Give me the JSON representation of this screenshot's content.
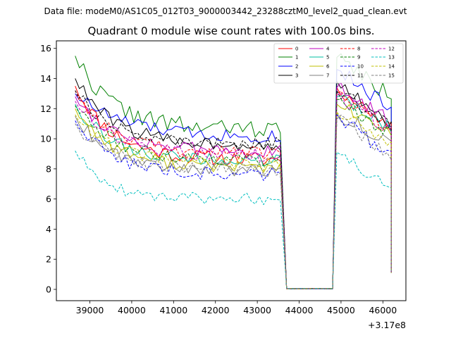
{
  "chart_data": {
    "type": "line",
    "suptitle": "Data file: modeM0/AS1C05_012T03_9000003442_23288cztM0_level2_quad_clean.evt",
    "title": "Quadrant 0 module wise count rates with 100.0s bins.",
    "xlabel": "",
    "ylabel": "",
    "x_offset_label": "+3.17e8",
    "xlim": [
      38200,
      46550
    ],
    "ylim": [
      -0.75,
      16.5
    ],
    "xticks": [
      {
        "value": 39000,
        "label": "39000"
      },
      {
        "value": 40000,
        "label": "40000"
      },
      {
        "value": 41000,
        "label": "41000"
      },
      {
        "value": 42000,
        "label": "42000"
      },
      {
        "value": 43000,
        "label": "43000"
      },
      {
        "value": 44000,
        "label": "44000"
      },
      {
        "value": 45000,
        "label": "45000"
      },
      {
        "value": 46000,
        "label": "46000"
      }
    ],
    "yticks": [
      {
        "value": 0,
        "label": "0"
      },
      {
        "value": 2,
        "label": "2"
      },
      {
        "value": 4,
        "label": "4"
      },
      {
        "value": 6,
        "label": "6"
      },
      {
        "value": 8,
        "label": "8"
      },
      {
        "value": 10,
        "label": "10"
      },
      {
        "value": 12,
        "label": "12"
      },
      {
        "value": 14,
        "label": "14"
      },
      {
        "value": 16,
        "label": "16"
      }
    ],
    "legend_position": "top-right",
    "legend_columns": 4,
    "segments": {
      "seg1": {
        "start": 38650,
        "end": 43600,
        "step": 100
      },
      "gap": {
        "start": 43700,
        "end": 44800,
        "step": 100,
        "value": 0.05
      },
      "seg2": {
        "start": 44900,
        "end": 46150,
        "step": 100
      }
    },
    "series": [
      {
        "name": "0",
        "color": "#ff0000",
        "dash": "solid",
        "start": 13.5,
        "plateau": 8.6,
        "decay": 900,
        "noise": 0.5,
        "drop": 9.0,
        "peak2": 13.4,
        "end2": 10.8,
        "noise2": 0.5,
        "seed": 11
      },
      {
        "name": "1",
        "color": "#008000",
        "dash": "solid",
        "start": 15.5,
        "plateau": 10.6,
        "decay": 900,
        "noise": 0.6,
        "drop": 11.9,
        "peak2": 15.4,
        "end2": 12.8,
        "noise2": 0.6,
        "seed": 22
      },
      {
        "name": "2",
        "color": "#0000ff",
        "dash": "solid",
        "start": 13.0,
        "plateau": 10.1,
        "decay": 1200,
        "noise": 0.45,
        "drop": 10.5,
        "peak2": 14.6,
        "end2": 12.0,
        "noise2": 0.5,
        "seed": 33
      },
      {
        "name": "3",
        "color": "#000000",
        "dash": "solid",
        "start": 14.0,
        "plateau": 9.6,
        "decay": 900,
        "noise": 0.45,
        "drop": 10.3,
        "peak2": 13.8,
        "end2": 10.8,
        "noise2": 0.5,
        "seed": 44
      },
      {
        "name": "4",
        "color": "#bf00bf",
        "dash": "solid",
        "start": 12.8,
        "plateau": 9.1,
        "decay": 1000,
        "noise": 0.45,
        "drop": 9.7,
        "peak2": 13.4,
        "end2": 11.2,
        "noise2": 0.5,
        "seed": 55
      },
      {
        "name": "5",
        "color": "#00bfa0",
        "dash": "solid",
        "start": 12.3,
        "plateau": 8.5,
        "decay": 900,
        "noise": 0.45,
        "drop": 8.6,
        "peak2": 12.8,
        "end2": 10.6,
        "noise2": 0.5,
        "seed": 66
      },
      {
        "name": "6",
        "color": "#bfbf00",
        "dash": "solid",
        "start": 12.0,
        "plateau": 8.1,
        "decay": 900,
        "noise": 0.45,
        "drop": 8.5,
        "peak2": 12.3,
        "end2": 10.2,
        "noise2": 0.5,
        "seed": 77
      },
      {
        "name": "7",
        "color": "#7f7f7f",
        "dash": "solid",
        "start": 11.5,
        "plateau": 7.9,
        "decay": 900,
        "noise": 0.45,
        "drop": 8.2,
        "peak2": 11.7,
        "end2": 9.6,
        "noise2": 0.5,
        "seed": 88
      },
      {
        "name": "8",
        "color": "#ff0000",
        "dash": "dashed",
        "start": 13.2,
        "plateau": 9.0,
        "decay": 900,
        "noise": 0.45,
        "drop": 9.2,
        "peak2": 13.0,
        "end2": 10.6,
        "noise2": 0.5,
        "seed": 99
      },
      {
        "name": "9",
        "color": "#008000",
        "dash": "dashed",
        "start": 12.2,
        "plateau": 8.6,
        "decay": 900,
        "noise": 0.45,
        "drop": 8.9,
        "peak2": 12.6,
        "end2": 10.3,
        "noise2": 0.5,
        "seed": 111
      },
      {
        "name": "10",
        "color": "#0000ff",
        "dash": "dashed",
        "start": 11.2,
        "plateau": 7.6,
        "decay": 900,
        "noise": 0.45,
        "drop": 7.7,
        "peak2": 11.6,
        "end2": 8.7,
        "noise2": 0.5,
        "seed": 122
      },
      {
        "name": "11",
        "color": "#000000",
        "dash": "dashed",
        "start": 13.2,
        "plateau": 9.7,
        "decay": 900,
        "noise": 0.45,
        "drop": 10.0,
        "peak2": 13.2,
        "end2": 10.9,
        "noise2": 0.5,
        "seed": 133
      },
      {
        "name": "12",
        "color": "#bf00bf",
        "dash": "dashed",
        "start": 12.5,
        "plateau": 8.9,
        "decay": 900,
        "noise": 0.45,
        "drop": 9.2,
        "peak2": 12.9,
        "end2": 10.6,
        "noise2": 0.5,
        "seed": 144
      },
      {
        "name": "13",
        "color": "#00bfbf",
        "dash": "dashed",
        "start": 9.2,
        "plateau": 6.0,
        "decay": 700,
        "noise": 0.4,
        "drop": 6.5,
        "peak2": 9.1,
        "end2": 6.6,
        "noise2": 0.4,
        "seed": 155
      },
      {
        "name": "14",
        "color": "#bfbf00",
        "dash": "dashed",
        "start": 11.6,
        "plateau": 8.3,
        "decay": 900,
        "noise": 0.45,
        "drop": 8.5,
        "peak2": 11.8,
        "end2": 9.4,
        "noise2": 0.5,
        "seed": 166
      },
      {
        "name": "15",
        "color": "#7f7f7f",
        "dash": "dashed",
        "start": 11.0,
        "plateau": 8.0,
        "decay": 900,
        "noise": 0.45,
        "drop": 8.1,
        "peak2": 11.3,
        "end2": 9.0,
        "noise2": 0.5,
        "seed": 177
      }
    ],
    "final_value": 1.1
  }
}
